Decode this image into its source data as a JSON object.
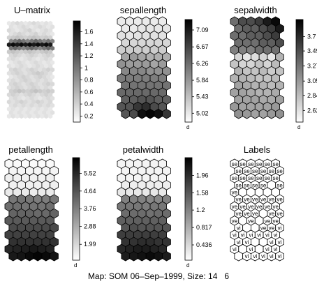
{
  "caption": "Map: SOM 06–Sep–1999, Size: 14   6",
  "chart_data": [
    {
      "type": "heatmap",
      "title": "U–matrix",
      "grid_size": [
        27,
        11
      ],
      "colormap": "gray-reversed",
      "colorbar_ticks": [
        "1.6",
        "1.4",
        "1.2",
        "1",
        "0.8",
        "0.6",
        "0.4",
        "0.2"
      ],
      "colorbar_range": [
        0.1,
        1.78
      ],
      "rows": [
        [
          0.25,
          0.3,
          0.35,
          0.3,
          0.25,
          0.3,
          0.35,
          0.3,
          0.25,
          0.3,
          0.25
        ],
        [
          0.3,
          0.25,
          0.3,
          0.35,
          0.3,
          0.25,
          0.3,
          0.35,
          0.3,
          0.25,
          0.3
        ],
        [
          0.35,
          0.3,
          0.25,
          0.3,
          0.35,
          0.4,
          0.3,
          0.25,
          0.3,
          0.35,
          0.3
        ],
        [
          0.3,
          0.35,
          0.4,
          0.35,
          0.3,
          0.35,
          0.4,
          0.3,
          0.35,
          0.3,
          0.25
        ],
        [
          0.4,
          0.45,
          0.5,
          0.45,
          0.4,
          0.45,
          0.5,
          0.45,
          0.4,
          0.45,
          0.4
        ],
        [
          0.9,
          1.0,
          1.1,
          1.0,
          0.9,
          1.0,
          1.1,
          1.0,
          0.9,
          1.0,
          0.9
        ],
        [
          1.6,
          1.7,
          1.6,
          1.7,
          1.6,
          1.7,
          1.6,
          1.7,
          1.6,
          1.7,
          1.6
        ],
        [
          1.0,
          1.1,
          1.0,
          0.9,
          1.0,
          1.1,
          1.0,
          0.9,
          1.0,
          1.1,
          1.0
        ],
        [
          0.45,
          0.5,
          0.45,
          0.4,
          0.45,
          0.5,
          0.45,
          0.4,
          0.45,
          0.5,
          0.45
        ],
        [
          0.35,
          0.4,
          0.35,
          0.3,
          0.35,
          0.4,
          0.35,
          0.3,
          0.35,
          0.4,
          0.35
        ],
        [
          0.3,
          0.35,
          0.3,
          0.25,
          0.3,
          0.35,
          0.3,
          0.25,
          0.3,
          0.35,
          0.3
        ],
        [
          0.25,
          0.3,
          0.35,
          0.3,
          0.25,
          0.3,
          0.35,
          0.3,
          0.25,
          0.3,
          0.25
        ],
        [
          0.3,
          0.25,
          0.3,
          0.35,
          0.3,
          0.25,
          0.3,
          0.35,
          0.3,
          0.25,
          0.3
        ],
        [
          0.35,
          0.4,
          0.35,
          0.3,
          0.35,
          0.4,
          0.35,
          0.3,
          0.35,
          0.4,
          0.35
        ],
        [
          0.3,
          0.35,
          0.4,
          0.35,
          0.3,
          0.35,
          0.4,
          0.45,
          0.4,
          0.35,
          0.3
        ],
        [
          0.25,
          0.3,
          0.35,
          0.4,
          0.35,
          0.3,
          0.35,
          0.4,
          0.35,
          0.3,
          0.25
        ],
        [
          0.3,
          0.35,
          0.3,
          0.35,
          0.4,
          0.35,
          0.3,
          0.35,
          0.3,
          0.35,
          0.3
        ],
        [
          0.35,
          0.4,
          0.35,
          0.3,
          0.35,
          0.4,
          0.35,
          0.3,
          0.35,
          0.4,
          0.35
        ],
        [
          0.3,
          0.35,
          0.4,
          0.35,
          0.3,
          0.35,
          0.4,
          0.35,
          0.3,
          0.35,
          0.3
        ],
        [
          0.4,
          0.45,
          0.5,
          0.45,
          0.4,
          0.45,
          0.5,
          0.45,
          0.4,
          0.45,
          0.4
        ],
        [
          0.35,
          0.4,
          0.35,
          0.3,
          0.35,
          0.4,
          0.35,
          0.3,
          0.35,
          0.4,
          0.35
        ],
        [
          0.3,
          0.35,
          0.3,
          0.25,
          0.3,
          0.35,
          0.3,
          0.25,
          0.3,
          0.35,
          0.3
        ],
        [
          0.35,
          0.3,
          0.35,
          0.4,
          0.35,
          0.3,
          0.35,
          0.4,
          0.35,
          0.3,
          0.35
        ],
        [
          0.3,
          0.35,
          0.3,
          0.35,
          0.3,
          0.35,
          0.3,
          0.35,
          0.3,
          0.35,
          0.3
        ],
        [
          0.25,
          0.3,
          0.25,
          0.3,
          0.25,
          0.3,
          0.25,
          0.3,
          0.25,
          0.3,
          0.25
        ],
        [
          0.3,
          0.25,
          0.3,
          0.25,
          0.3,
          0.25,
          0.3,
          0.25,
          0.3,
          0.25,
          0.3
        ],
        [
          0.25,
          0.3,
          0.25,
          0.3,
          0.25,
          0.3,
          0.25,
          0.3,
          0.25,
          0.3,
          0.25
        ]
      ]
    },
    {
      "type": "heatmap",
      "title": "sepallength",
      "grid_size": [
        14,
        6
      ],
      "colormap": "gray-reversed",
      "colorbar_unit": "d",
      "colorbar_ticks": [
        "7.09",
        "6.67",
        "6.26",
        "5.84",
        "5.43",
        "5.02"
      ],
      "colorbar_range": [
        4.8,
        7.35
      ],
      "rows": [
        [
          5.0,
          5.0,
          5.0,
          5.0,
          5.0,
          5.0
        ],
        [
          5.0,
          5.0,
          5.05,
          5.05,
          5.05,
          5.05
        ],
        [
          5.1,
          5.05,
          5.1,
          5.1,
          5.1,
          5.1
        ],
        [
          5.2,
          5.2,
          5.2,
          5.2,
          5.2,
          5.2
        ],
        [
          5.3,
          5.3,
          5.3,
          5.3,
          5.3,
          5.3
        ],
        [
          5.7,
          5.8,
          5.7,
          5.6,
          5.6,
          5.6
        ],
        [
          5.9,
          5.8,
          5.8,
          5.8,
          5.7,
          5.8
        ],
        [
          6.0,
          6.0,
          6.0,
          5.9,
          5.9,
          5.9
        ],
        [
          6.1,
          6.1,
          6.1,
          6.1,
          6.1,
          6.1
        ],
        [
          6.2,
          6.2,
          6.2,
          6.2,
          6.2,
          6.2
        ],
        [
          6.3,
          6.3,
          6.3,
          6.3,
          6.3,
          6.3
        ],
        [
          6.4,
          6.4,
          6.5,
          6.5,
          6.4,
          6.4
        ],
        [
          6.5,
          6.5,
          6.8,
          6.9,
          6.6,
          6.5
        ],
        [
          6.5,
          6.6,
          7.2,
          7.3,
          7.2,
          6.8
        ]
      ]
    },
    {
      "type": "heatmap",
      "title": "sepalwidth",
      "grid_size": [
        14,
        6
      ],
      "colormap": "gray-reversed",
      "colorbar_unit": "d",
      "colorbar_ticks": [
        "3.7",
        "3.49",
        "3.27",
        "3.05",
        "2.84",
        "2.62"
      ],
      "colorbar_range": [
        2.45,
        3.95
      ],
      "rows": [
        [
          3.3,
          3.5,
          3.5,
          3.6,
          3.8,
          3.9
        ],
        [
          3.3,
          3.4,
          3.4,
          3.5,
          3.6,
          3.8
        ],
        [
          3.3,
          3.3,
          3.4,
          3.4,
          3.5,
          3.6
        ],
        [
          3.3,
          3.3,
          3.3,
          3.4,
          3.4,
          3.5
        ],
        [
          3.2,
          3.2,
          3.2,
          3.3,
          3.3,
          3.3
        ],
        [
          2.7,
          2.6,
          2.65,
          2.7,
          2.6,
          2.9
        ],
        [
          2.8,
          2.7,
          2.7,
          2.8,
          2.7,
          2.85
        ],
        [
          2.9,
          2.8,
          2.8,
          2.85,
          2.75,
          2.8
        ],
        [
          2.9,
          2.9,
          2.85,
          2.8,
          2.8,
          2.85
        ],
        [
          3.0,
          2.95,
          2.9,
          2.9,
          2.85,
          2.9
        ],
        [
          3.0,
          3.0,
          2.95,
          2.9,
          2.9,
          2.95
        ],
        [
          3.0,
          3.0,
          3.0,
          2.95,
          2.95,
          3.0
        ],
        [
          3.05,
          3.0,
          3.0,
          3.0,
          3.0,
          3.05
        ],
        [
          3.1,
          3.05,
          3.0,
          3.0,
          3.05,
          3.1
        ]
      ]
    },
    {
      "type": "heatmap",
      "title": "petallength",
      "grid_size": [
        14,
        6
      ],
      "colormap": "gray-reversed",
      "colorbar_unit": "d",
      "colorbar_ticks": [
        "5.52",
        "4.64",
        "3.76",
        "2.88",
        "1.99"
      ],
      "colorbar_range": [
        1.2,
        6.3
      ],
      "rows": [
        [
          1.3,
          1.3,
          1.3,
          1.3,
          1.3,
          1.3
        ],
        [
          1.4,
          1.4,
          1.4,
          1.4,
          1.4,
          1.4
        ],
        [
          1.5,
          1.5,
          1.5,
          1.5,
          1.5,
          1.5
        ],
        [
          1.5,
          1.5,
          1.5,
          1.5,
          1.5,
          1.5
        ],
        [
          1.6,
          1.6,
          1.6,
          1.6,
          1.6,
          1.6
        ],
        [
          3.9,
          4.0,
          3.9,
          3.8,
          3.8,
          3.9
        ],
        [
          4.1,
          4.1,
          4.0,
          4.0,
          4.0,
          4.1
        ],
        [
          4.3,
          4.3,
          4.3,
          4.2,
          4.2,
          4.3
        ],
        [
          4.5,
          4.5,
          4.5,
          4.5,
          4.5,
          4.5
        ],
        [
          4.8,
          4.8,
          4.8,
          4.8,
          4.8,
          4.8
        ],
        [
          5.0,
          5.0,
          5.0,
          5.0,
          5.0,
          5.0
        ],
        [
          5.3,
          5.3,
          5.3,
          5.3,
          5.3,
          5.3
        ],
        [
          5.5,
          5.6,
          5.7,
          5.8,
          5.7,
          5.6
        ],
        [
          5.8,
          5.9,
          6.1,
          6.2,
          6.1,
          5.9
        ]
      ]
    },
    {
      "type": "heatmap",
      "title": "petalwidth",
      "grid_size": [
        14,
        6
      ],
      "colormap": "gray-reversed",
      "colorbar_unit": "d",
      "colorbar_ticks": [
        "1.96",
        "1.58",
        "1.2",
        "0.817",
        "0.436"
      ],
      "colorbar_range": [
        0.1,
        2.35
      ],
      "rows": [
        [
          0.2,
          0.2,
          0.2,
          0.2,
          0.2,
          0.2
        ],
        [
          0.2,
          0.2,
          0.2,
          0.2,
          0.2,
          0.2
        ],
        [
          0.2,
          0.2,
          0.2,
          0.2,
          0.2,
          0.2
        ],
        [
          0.25,
          0.25,
          0.25,
          0.25,
          0.25,
          0.25
        ],
        [
          0.3,
          0.3,
          0.3,
          0.3,
          0.3,
          0.3
        ],
        [
          1.2,
          1.2,
          1.2,
          1.15,
          1.15,
          1.2
        ],
        [
          1.3,
          1.3,
          1.3,
          1.25,
          1.3,
          1.3
        ],
        [
          1.4,
          1.4,
          1.4,
          1.35,
          1.4,
          1.4
        ],
        [
          1.5,
          1.5,
          1.5,
          1.5,
          1.5,
          1.5
        ],
        [
          1.6,
          1.65,
          1.6,
          1.6,
          1.6,
          1.6
        ],
        [
          1.8,
          1.8,
          1.8,
          1.8,
          1.8,
          1.8
        ],
        [
          1.9,
          1.9,
          1.95,
          1.95,
          1.9,
          1.9
        ],
        [
          2.0,
          2.05,
          2.1,
          2.1,
          2.05,
          2.0
        ],
        [
          2.1,
          2.15,
          2.2,
          2.25,
          2.2,
          2.1
        ]
      ]
    },
    {
      "type": "table",
      "title": "Labels",
      "grid_size": [
        14,
        6
      ],
      "rows": [
        [
          "se",
          "se",
          "se",
          "se",
          "se",
          "se"
        ],
        [
          "se",
          "se",
          "se",
          "se",
          "se",
          "se"
        ],
        [
          "se",
          "se",
          "se",
          "se",
          "se",
          "se"
        ],
        [
          "se",
          "se",
          "se",
          "se",
          "",
          "se"
        ],
        [
          "ve",
          "",
          "",
          "",
          "",
          ""
        ],
        [
          "ve",
          "ve",
          "ve",
          "ve",
          "ve",
          "ve"
        ],
        [
          "ve",
          "ve",
          "ve",
          "ve",
          "ve",
          "ve"
        ],
        [
          "ve",
          "ve",
          "ve",
          "",
          "ve",
          "ve"
        ],
        [
          "ve",
          "",
          "ve",
          "",
          "ve",
          "ve"
        ],
        [
          "vi",
          "",
          "",
          "ve",
          "ve",
          "vi"
        ],
        [
          "vi",
          "vi",
          "vi",
          "vi",
          "vi",
          "vi"
        ],
        [
          "vi",
          "vi",
          "",
          "",
          "vi",
          "vi"
        ],
        [
          "vi",
          "",
          "vi",
          "",
          "vi",
          "vi"
        ],
        [
          "",
          "vi",
          "vi",
          "vi",
          "vi",
          "vi"
        ]
      ]
    }
  ]
}
